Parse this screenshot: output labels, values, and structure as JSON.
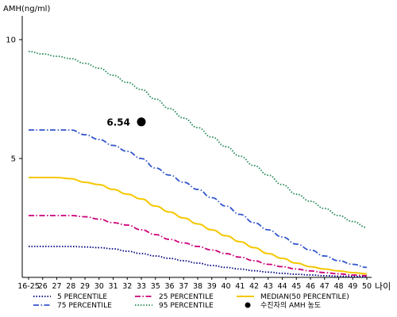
{
  "chart_data": {
    "type": "line",
    "title": "",
    "ylabel": "AMH(ng/ml)",
    "xlabel": "나이",
    "ylim": [
      0,
      11
    ],
    "y_ticks": [
      5,
      10
    ],
    "x_ticks": [
      "16-25",
      "26",
      "27",
      "28",
      "29",
      "30",
      "31",
      "32",
      "33",
      "35",
      "36",
      "37",
      "38",
      "39",
      "40",
      "41",
      "42",
      "43",
      "44",
      "45",
      "46",
      "47",
      "48",
      "49",
      "50"
    ],
    "grid": false,
    "legend_position": "bottom",
    "series": [
      {
        "name": "5 PERCENTILE",
        "color": "#000080",
        "dash": "dotted",
        "values": [
          1.3,
          1.3,
          1.3,
          1.3,
          1.28,
          1.25,
          1.2,
          1.1,
          1.0,
          0.9,
          0.8,
          0.7,
          0.6,
          0.5,
          0.42,
          0.35,
          0.28,
          0.22,
          0.17,
          0.13,
          0.1,
          0.07,
          0.05,
          0.04,
          0.03
        ]
      },
      {
        "name": "75 PERCENTILE",
        "color": "#3355cc",
        "dash": "dashdot",
        "values": [
          6.2,
          6.2,
          6.2,
          6.2,
          6.0,
          5.8,
          5.55,
          5.3,
          5.0,
          4.6,
          4.3,
          4.0,
          3.7,
          3.35,
          3.0,
          2.65,
          2.3,
          2.0,
          1.7,
          1.4,
          1.15,
          0.9,
          0.7,
          0.55,
          0.42
        ]
      },
      {
        "name": "25 PERCENTILE",
        "color": "#cc0077",
        "dash": "dashdot",
        "values": [
          2.6,
          2.6,
          2.6,
          2.6,
          2.55,
          2.45,
          2.3,
          2.2,
          2.0,
          1.8,
          1.6,
          1.45,
          1.3,
          1.15,
          1.0,
          0.85,
          0.7,
          0.55,
          0.45,
          0.35,
          0.27,
          0.2,
          0.15,
          0.1,
          0.07
        ]
      },
      {
        "name": "95 PERCENTILE",
        "color": "#228855",
        "dash": "dotted",
        "values": [
          9.5,
          9.4,
          9.3,
          9.2,
          9.0,
          8.8,
          8.5,
          8.2,
          7.9,
          7.5,
          7.1,
          6.7,
          6.3,
          5.9,
          5.5,
          5.1,
          4.7,
          4.3,
          3.9,
          3.5,
          3.2,
          2.9,
          2.6,
          2.35,
          2.1
        ]
      },
      {
        "name": "MEDIAN(50 PERCENTILE)",
        "color": "#f5c800",
        "dash": "solid",
        "values": [
          4.2,
          4.2,
          4.2,
          4.15,
          4.0,
          3.9,
          3.7,
          3.5,
          3.3,
          3.0,
          2.75,
          2.5,
          2.25,
          2.0,
          1.75,
          1.5,
          1.25,
          1.0,
          0.8,
          0.6,
          0.45,
          0.35,
          0.27,
          0.2,
          0.15
        ]
      }
    ],
    "annotations": [
      {
        "name": "수진자의 AMH 농도",
        "x": "33",
        "y": 6.54,
        "label": "6.54",
        "color": "#000000",
        "marker": "circle"
      }
    ]
  }
}
